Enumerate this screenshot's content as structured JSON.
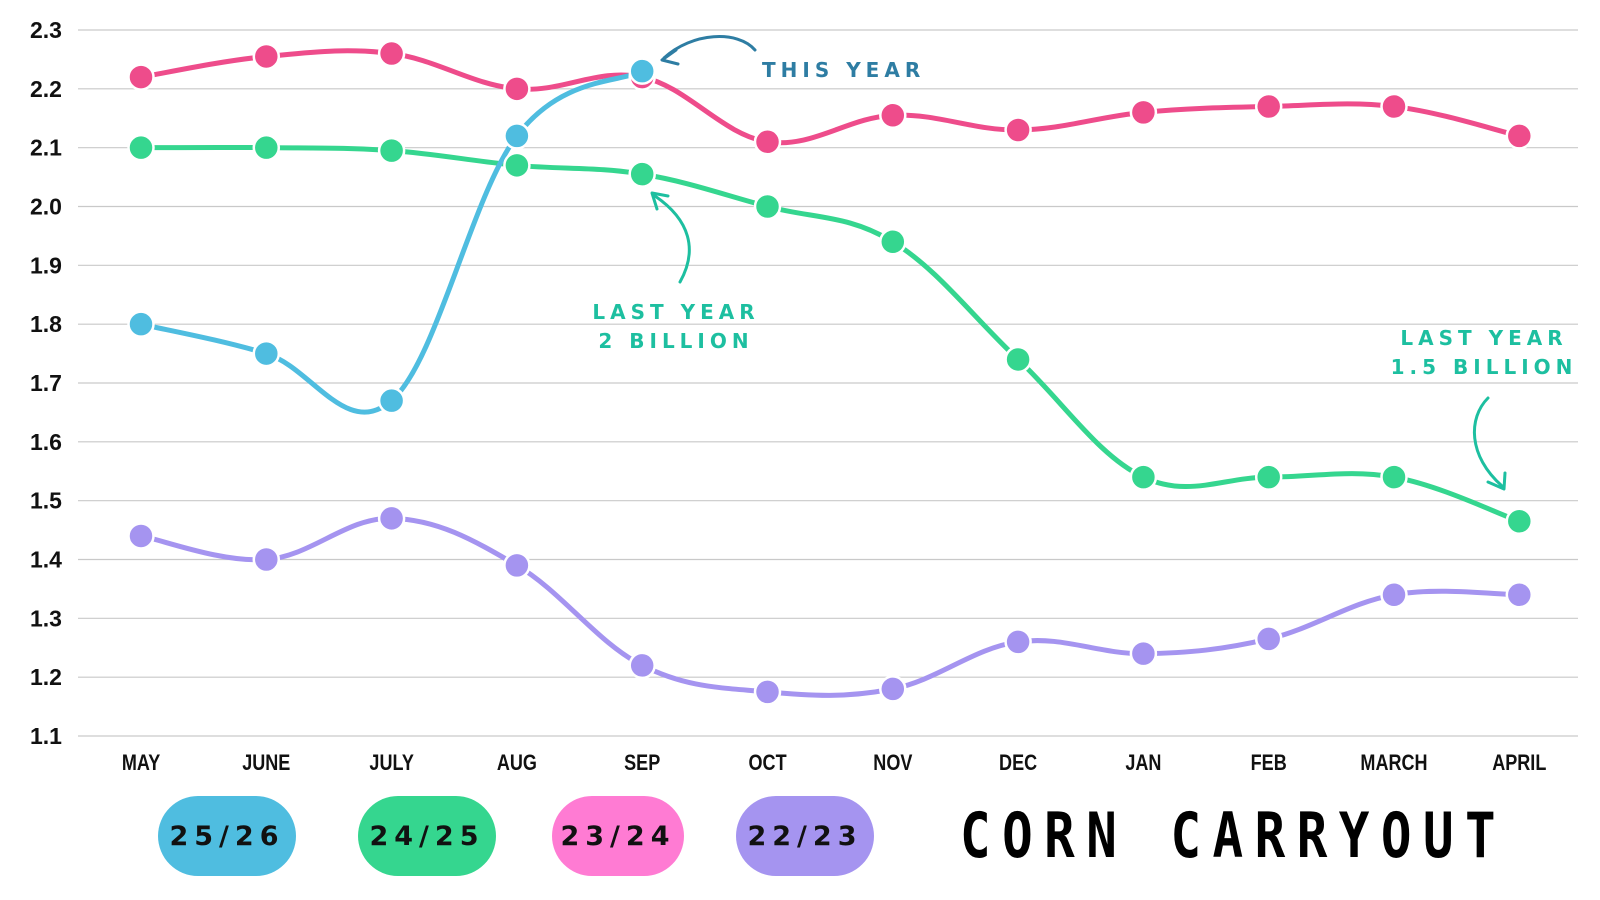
{
  "chart_data": {
    "type": "line",
    "title": "CORN CARRYOUT",
    "categories": [
      "MAY",
      "JUNE",
      "JULY",
      "AUG",
      "SEP",
      "OCT",
      "NOV",
      "DEC",
      "JAN",
      "FEB",
      "MARCH",
      "APRIL"
    ],
    "y_ticks": [
      "2.3",
      "2.2",
      "2.1",
      "2.0",
      "1.9",
      "1.8",
      "1.7",
      "1.6",
      "1.5",
      "1.4",
      "1.3",
      "1.2",
      "1.1"
    ],
    "ylim": [
      1.1,
      2.3
    ],
    "grid": "horizontal",
    "series": [
      {
        "name": "25/26",
        "color": "#4FBDE0",
        "values": [
          1.8,
          1.75,
          1.67,
          2.12,
          2.23,
          null,
          null,
          null,
          null,
          null,
          null,
          null
        ]
      },
      {
        "name": "24/25",
        "color": "#35D68F",
        "values": [
          2.1,
          2.1,
          2.095,
          2.07,
          2.055,
          2.0,
          1.94,
          1.74,
          1.54,
          1.54,
          1.54,
          1.465
        ]
      },
      {
        "name": "23/24",
        "color": "#EE4C8B",
        "values": [
          2.22,
          2.255,
          2.26,
          2.2,
          2.22,
          2.11,
          2.155,
          2.13,
          2.16,
          2.17,
          2.17,
          2.12
        ]
      },
      {
        "name": "22/23",
        "color": "#A594F0",
        "values": [
          1.44,
          1.4,
          1.47,
          1.39,
          1.22,
          1.175,
          1.18,
          1.26,
          1.24,
          1.265,
          1.34,
          1.34
        ]
      }
    ],
    "annotations": [
      {
        "lines": [
          "THIS YEAR"
        ],
        "color": "#2E7DA3"
      },
      {
        "lines": [
          "LAST YEAR",
          "2 BILLION"
        ],
        "color": "#1DBFA0"
      },
      {
        "lines": [
          "LAST YEAR",
          "1.5 BILLION"
        ],
        "color": "#1DBFA0"
      }
    ]
  },
  "legend": [
    {
      "label": "25/26",
      "color": "#4FBDE0"
    },
    {
      "label": "24/25",
      "color": "#35D68F"
    },
    {
      "label": "23/24",
      "color": "#FF7BD3"
    },
    {
      "label": "22/23",
      "color": "#A594F0"
    }
  ]
}
